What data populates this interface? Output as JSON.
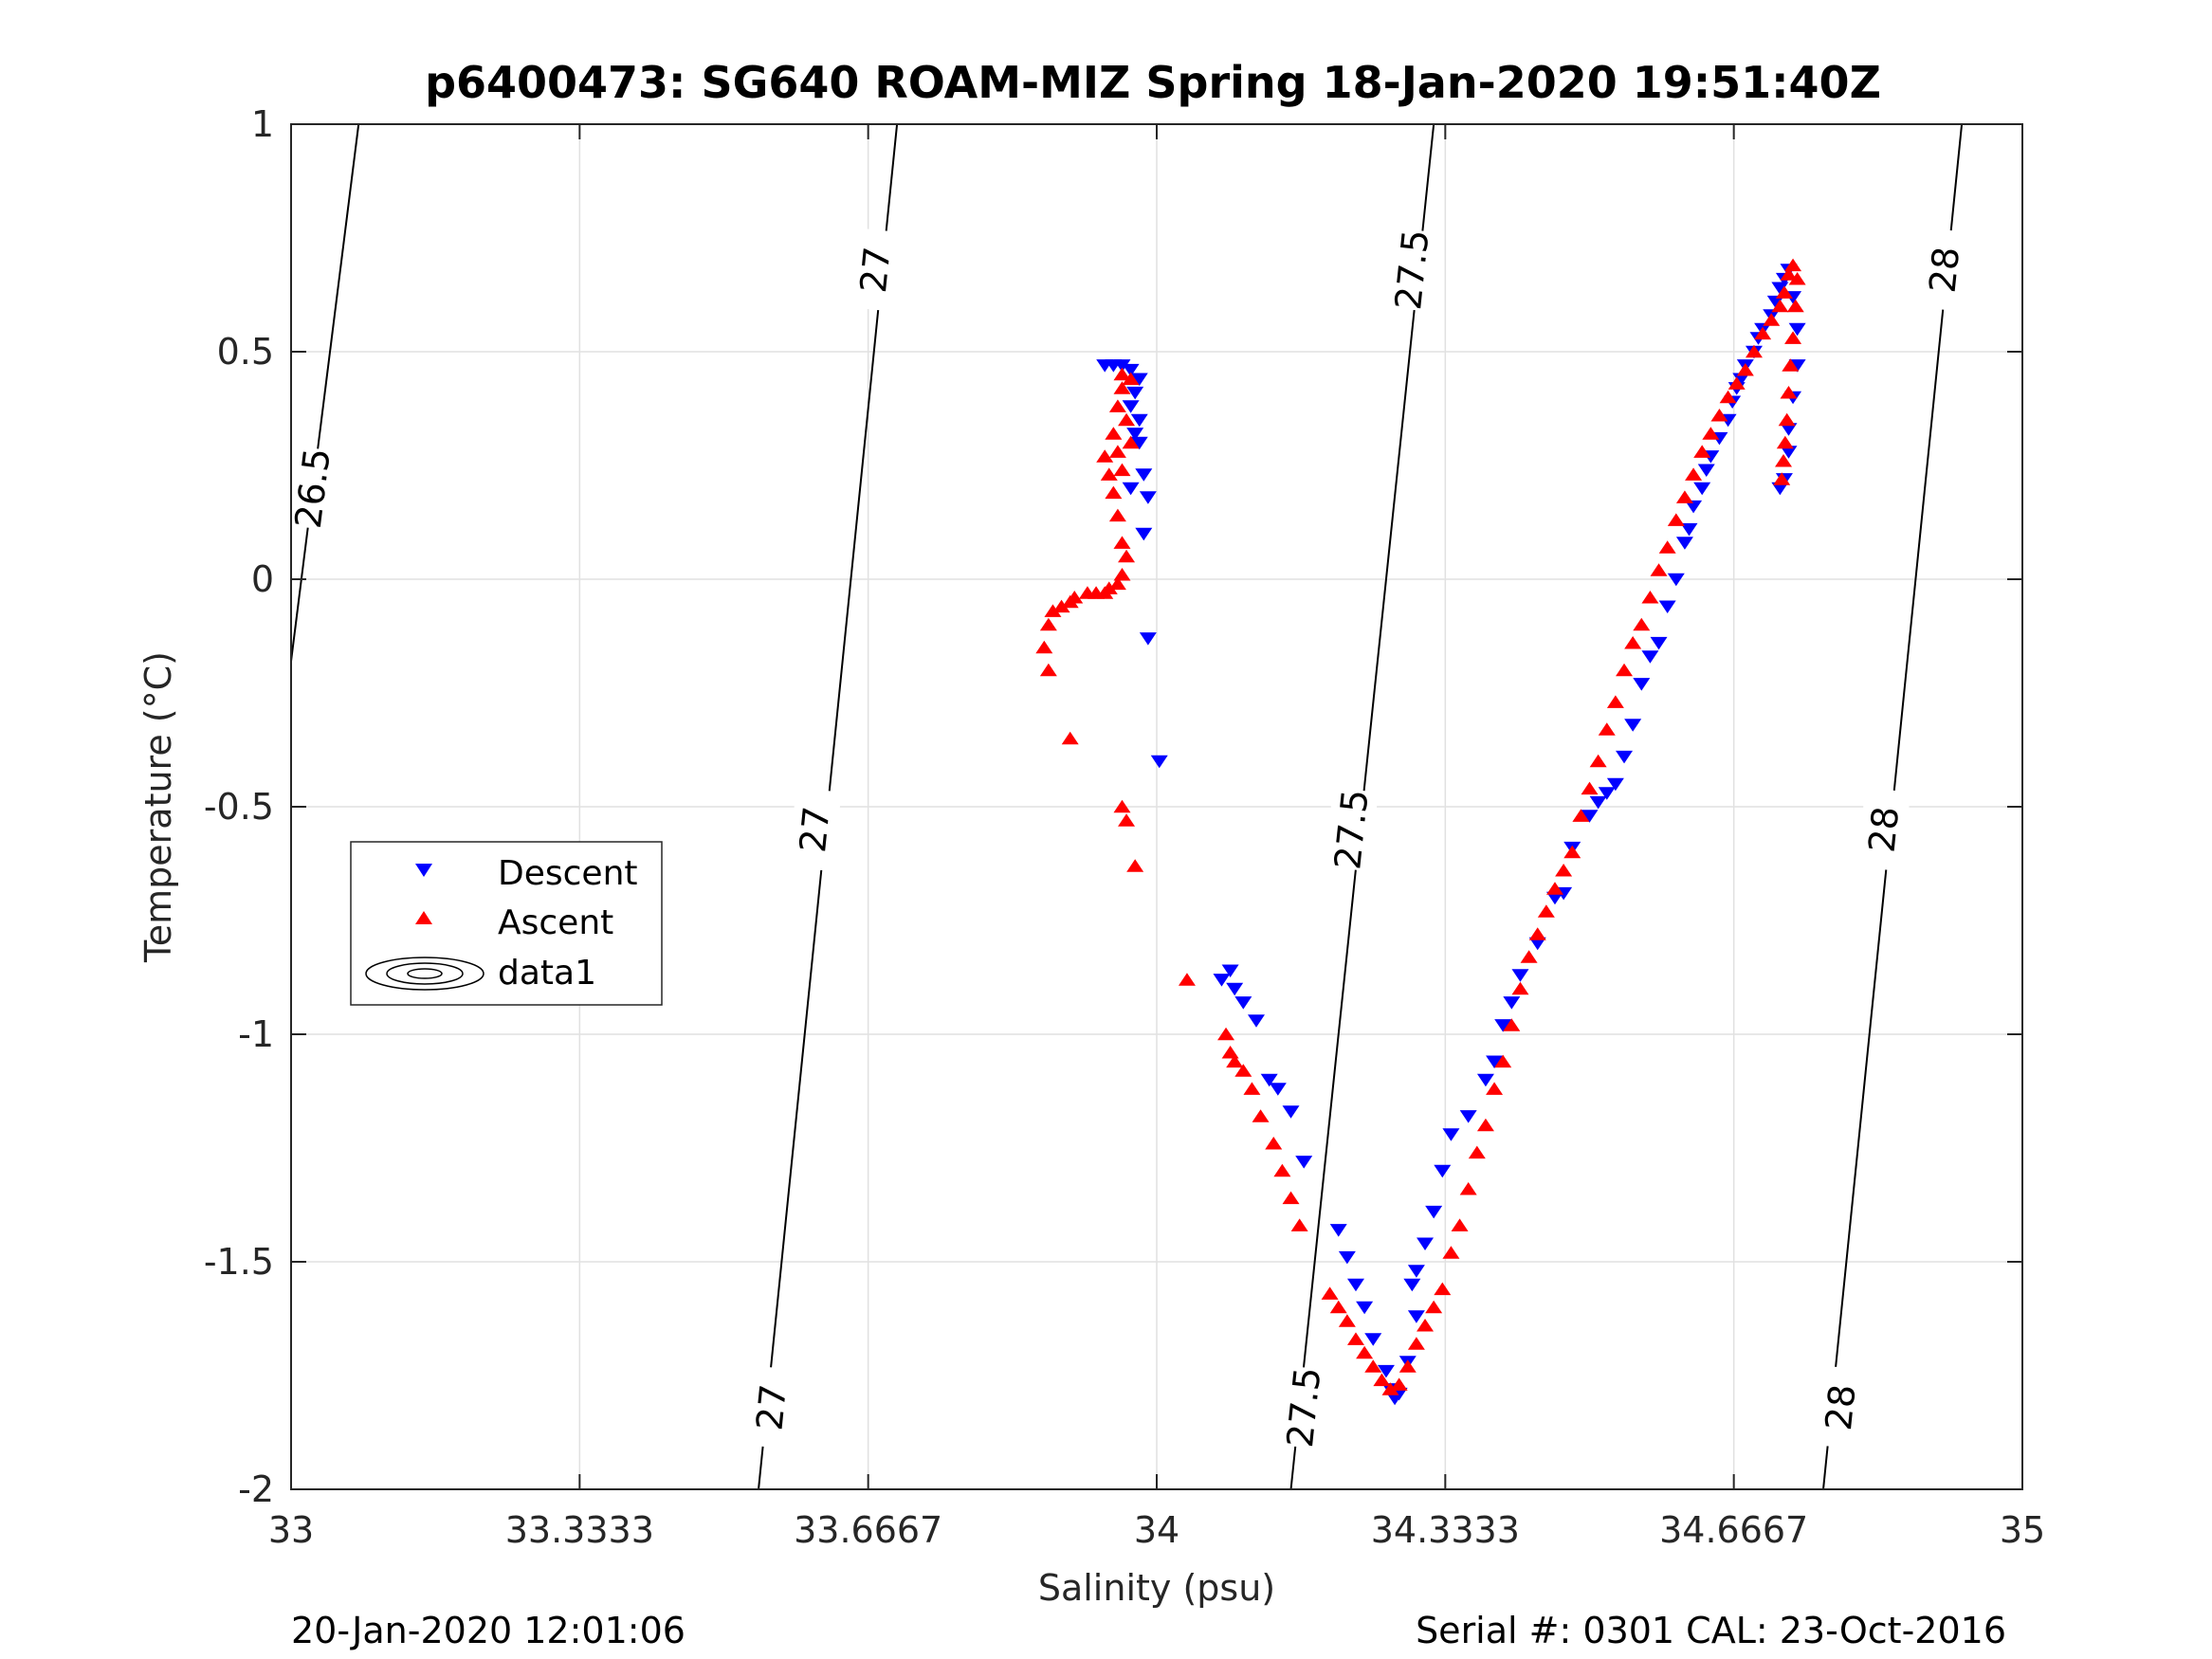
{
  "chart_data": {
    "type": "scatter",
    "title": "p6400473: SG640 ROAM-MIZ Spring 18-Jan-2020 19:51:40Z",
    "xlabel": "Salinity (psu)",
    "ylabel": "Temperature (°C)",
    "xlim": [
      33,
      35
    ],
    "ylim": [
      -2,
      1
    ],
    "x_ticks": [
      "33",
      "33.3333",
      "33.6667",
      "34",
      "34.3333",
      "34.6667",
      "35"
    ],
    "y_ticks": [
      "1",
      "0.5",
      "0",
      "-0.5",
      "-1",
      "-1.5",
      "-2"
    ],
    "grid": true,
    "legend_position": "left-center",
    "legend": [
      "Descent",
      "Ascent",
      "data1"
    ],
    "colors": {
      "descent": "#0000ff",
      "ascent": "#ff0000",
      "contour": "#000000",
      "grid": "#e1e1e1"
    },
    "density_contours": [
      {
        "value": "26.5",
        "points": [
          [
            33.0,
            -0.18
          ],
          [
            33.078,
            1.0
          ]
        ],
        "label_positions": [
          [
            33.025,
            0.2
          ]
        ]
      },
      {
        "value": "27",
        "points": [
          [
            33.54,
            -2.0
          ],
          [
            33.7,
            1.0
          ]
        ],
        "label_positions": [
          [
            33.555,
            -1.82
          ],
          [
            33.605,
            -0.55
          ],
          [
            33.675,
            0.68
          ]
        ]
      },
      {
        "value": "27.5",
        "points": [
          [
            34.155,
            -2.0
          ],
          [
            34.32,
            1.0
          ]
        ],
        "label_positions": [
          [
            34.17,
            -1.82
          ],
          [
            34.225,
            -0.55
          ],
          [
            34.295,
            0.68
          ]
        ]
      },
      {
        "value": "28",
        "points": [
          [
            34.77,
            -2.0
          ],
          [
            34.93,
            1.0
          ]
        ],
        "label_positions": [
          [
            34.79,
            -1.82
          ],
          [
            34.84,
            -0.55
          ],
          [
            34.91,
            0.68
          ]
        ]
      }
    ],
    "series": [
      {
        "name": "Descent",
        "marker": "triangle-down",
        "points": [
          [
            33.94,
            0.47
          ],
          [
            33.95,
            0.47
          ],
          [
            33.96,
            0.47
          ],
          [
            33.97,
            0.46
          ],
          [
            33.98,
            0.44
          ],
          [
            33.975,
            0.41
          ],
          [
            33.97,
            0.38
          ],
          [
            33.98,
            0.35
          ],
          [
            33.975,
            0.32
          ],
          [
            33.98,
            0.3
          ],
          [
            33.985,
            0.23
          ],
          [
            33.97,
            0.2
          ],
          [
            33.99,
            0.18
          ],
          [
            33.985,
            0.1
          ],
          [
            33.99,
            -0.13
          ],
          [
            34.003,
            -0.4
          ],
          [
            34.075,
            -0.88
          ],
          [
            34.085,
            -0.86
          ],
          [
            34.09,
            -0.9
          ],
          [
            34.1,
            -0.93
          ],
          [
            34.115,
            -0.97
          ],
          [
            34.13,
            -1.1
          ],
          [
            34.14,
            -1.12
          ],
          [
            34.155,
            -1.17
          ],
          [
            34.17,
            -1.28
          ],
          [
            34.21,
            -1.43
          ],
          [
            34.22,
            -1.49
          ],
          [
            34.23,
            -1.55
          ],
          [
            34.24,
            -1.6
          ],
          [
            34.25,
            -1.67
          ],
          [
            34.265,
            -1.74
          ],
          [
            34.27,
            -1.78
          ],
          [
            34.275,
            -1.8
          ],
          [
            34.28,
            -1.79
          ],
          [
            34.29,
            -1.72
          ],
          [
            34.3,
            -1.62
          ],
          [
            34.295,
            -1.55
          ],
          [
            34.3,
            -1.52
          ],
          [
            34.31,
            -1.46
          ],
          [
            34.32,
            -1.39
          ],
          [
            34.33,
            -1.3
          ],
          [
            34.34,
            -1.22
          ],
          [
            34.36,
            -1.18
          ],
          [
            34.38,
            -1.1
          ],
          [
            34.39,
            -1.06
          ],
          [
            34.4,
            -0.98
          ],
          [
            34.41,
            -0.93
          ],
          [
            34.42,
            -0.87
          ],
          [
            34.44,
            -0.8
          ],
          [
            34.46,
            -0.7
          ],
          [
            34.47,
            -0.69
          ],
          [
            34.48,
            -0.59
          ],
          [
            34.5,
            -0.52
          ],
          [
            34.51,
            -0.49
          ],
          [
            34.52,
            -0.47
          ],
          [
            34.53,
            -0.45
          ],
          [
            34.54,
            -0.39
          ],
          [
            34.55,
            -0.32
          ],
          [
            34.56,
            -0.23
          ],
          [
            34.57,
            -0.17
          ],
          [
            34.58,
            -0.14
          ],
          [
            34.59,
            -0.06
          ],
          [
            34.6,
            0.0
          ],
          [
            34.61,
            0.08
          ],
          [
            34.615,
            0.11
          ],
          [
            34.62,
            0.16
          ],
          [
            34.63,
            0.2
          ],
          [
            34.635,
            0.24
          ],
          [
            34.64,
            0.27
          ],
          [
            34.65,
            0.31
          ],
          [
            34.66,
            0.35
          ],
          [
            34.665,
            0.39
          ],
          [
            34.67,
            0.42
          ],
          [
            34.675,
            0.44
          ],
          [
            34.68,
            0.47
          ],
          [
            34.69,
            0.5
          ],
          [
            34.695,
            0.53
          ],
          [
            34.7,
            0.55
          ],
          [
            34.71,
            0.58
          ],
          [
            34.715,
            0.61
          ],
          [
            34.72,
            0.64
          ],
          [
            34.725,
            0.66
          ],
          [
            34.73,
            0.68
          ],
          [
            34.735,
            0.62
          ],
          [
            34.74,
            0.55
          ],
          [
            34.74,
            0.47
          ],
          [
            34.735,
            0.4
          ],
          [
            34.73,
            0.33
          ],
          [
            34.73,
            0.28
          ],
          [
            34.725,
            0.22
          ],
          [
            34.72,
            0.2
          ]
        ]
      },
      {
        "name": "Ascent",
        "marker": "triangle-up",
        "points": [
          [
            33.96,
            0.45
          ],
          [
            33.97,
            0.44
          ],
          [
            33.96,
            0.42
          ],
          [
            33.955,
            0.38
          ],
          [
            33.965,
            0.35
          ],
          [
            33.95,
            0.32
          ],
          [
            33.97,
            0.3
          ],
          [
            33.955,
            0.28
          ],
          [
            33.94,
            0.27
          ],
          [
            33.96,
            0.24
          ],
          [
            33.945,
            0.23
          ],
          [
            33.95,
            0.19
          ],
          [
            33.955,
            0.14
          ],
          [
            33.96,
            0.08
          ],
          [
            33.965,
            0.05
          ],
          [
            33.96,
            0.01
          ],
          [
            33.955,
            -0.01
          ],
          [
            33.945,
            -0.02
          ],
          [
            33.94,
            -0.03
          ],
          [
            33.93,
            -0.03
          ],
          [
            33.92,
            -0.03
          ],
          [
            33.905,
            -0.04
          ],
          [
            33.9,
            -0.05
          ],
          [
            33.89,
            -0.06
          ],
          [
            33.88,
            -0.07
          ],
          [
            33.875,
            -0.1
          ],
          [
            33.87,
            -0.15
          ],
          [
            33.875,
            -0.2
          ],
          [
            33.9,
            -0.35
          ],
          [
            33.96,
            -0.5
          ],
          [
            33.965,
            -0.53
          ],
          [
            33.975,
            -0.63
          ],
          [
            34.035,
            -0.88
          ],
          [
            34.08,
            -1.0
          ],
          [
            34.085,
            -1.04
          ],
          [
            34.09,
            -1.06
          ],
          [
            34.1,
            -1.08
          ],
          [
            34.11,
            -1.12
          ],
          [
            34.12,
            -1.18
          ],
          [
            34.135,
            -1.24
          ],
          [
            34.145,
            -1.3
          ],
          [
            34.155,
            -1.36
          ],
          [
            34.165,
            -1.42
          ],
          [
            34.2,
            -1.57
          ],
          [
            34.21,
            -1.6
          ],
          [
            34.22,
            -1.63
          ],
          [
            34.23,
            -1.67
          ],
          [
            34.24,
            -1.7
          ],
          [
            34.25,
            -1.73
          ],
          [
            34.26,
            -1.76
          ],
          [
            34.27,
            -1.78
          ],
          [
            34.28,
            -1.77
          ],
          [
            34.29,
            -1.73
          ],
          [
            34.3,
            -1.68
          ],
          [
            34.31,
            -1.64
          ],
          [
            34.32,
            -1.6
          ],
          [
            34.33,
            -1.56
          ],
          [
            34.34,
            -1.48
          ],
          [
            34.35,
            -1.42
          ],
          [
            34.36,
            -1.34
          ],
          [
            34.37,
            -1.26
          ],
          [
            34.38,
            -1.2
          ],
          [
            34.39,
            -1.12
          ],
          [
            34.4,
            -1.06
          ],
          [
            34.41,
            -0.98
          ],
          [
            34.42,
            -0.9
          ],
          [
            34.43,
            -0.83
          ],
          [
            34.44,
            -0.78
          ],
          [
            34.45,
            -0.73
          ],
          [
            34.46,
            -0.68
          ],
          [
            34.47,
            -0.64
          ],
          [
            34.48,
            -0.6
          ],
          [
            34.49,
            -0.52
          ],
          [
            34.5,
            -0.46
          ],
          [
            34.51,
            -0.4
          ],
          [
            34.52,
            -0.33
          ],
          [
            34.53,
            -0.27
          ],
          [
            34.54,
            -0.2
          ],
          [
            34.55,
            -0.14
          ],
          [
            34.56,
            -0.1
          ],
          [
            34.57,
            -0.04
          ],
          [
            34.58,
            0.02
          ],
          [
            34.59,
            0.07
          ],
          [
            34.6,
            0.13
          ],
          [
            34.61,
            0.18
          ],
          [
            34.62,
            0.23
          ],
          [
            34.63,
            0.28
          ],
          [
            34.64,
            0.32
          ],
          [
            34.65,
            0.36
          ],
          [
            34.66,
            0.4
          ],
          [
            34.67,
            0.43
          ],
          [
            34.68,
            0.46
          ],
          [
            34.69,
            0.5
          ],
          [
            34.7,
            0.54
          ],
          [
            34.71,
            0.57
          ],
          [
            34.72,
            0.6
          ],
          [
            34.725,
            0.63
          ],
          [
            34.73,
            0.67
          ],
          [
            34.735,
            0.69
          ],
          [
            34.74,
            0.66
          ],
          [
            34.738,
            0.6
          ],
          [
            34.735,
            0.53
          ],
          [
            34.732,
            0.47
          ],
          [
            34.73,
            0.41
          ],
          [
            34.728,
            0.35
          ],
          [
            34.726,
            0.3
          ],
          [
            34.724,
            0.26
          ],
          [
            34.722,
            0.22
          ]
        ]
      }
    ]
  },
  "footer": {
    "timestamp": "20-Jan-2020 12:01:06",
    "serial": "Serial #: 0301  CAL: 23-Oct-2016"
  }
}
